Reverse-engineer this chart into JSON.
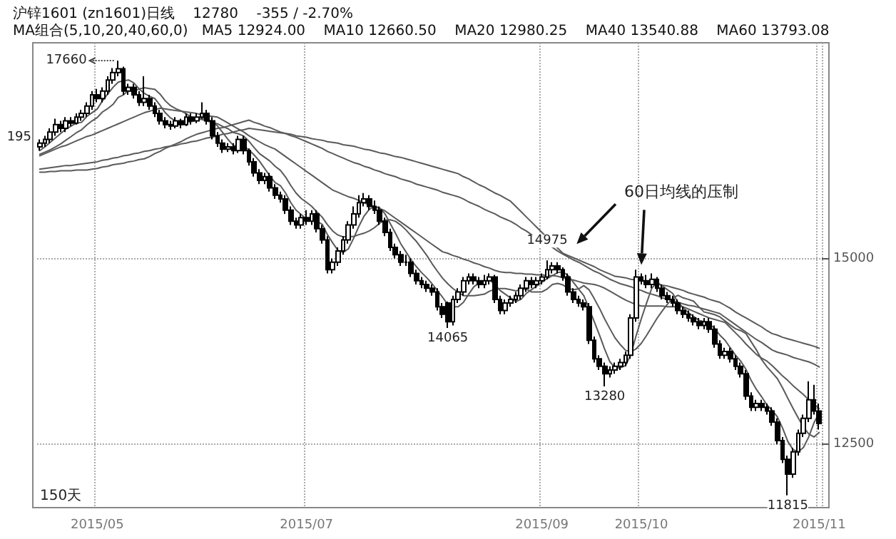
{
  "chart_data": {
    "type": "candlestick",
    "title": "沪锌1601 (zn1601)日线    12780    -355 / -2.70%",
    "subtitle": "MA组合(5,10,20,40,60,0)   MA5 12924.00    MA10 12660.50    MA20 12980.25    MA40 13540.88    MA60 13793.08",
    "categories": [
      null,
      null,
      null,
      null,
      null,
      null,
      null,
      null,
      null,
      null,
      null,
      "2015/05",
      null,
      null,
      null,
      null,
      null,
      null,
      null,
      null,
      null,
      null,
      null,
      null,
      null,
      null,
      null,
      null,
      null,
      null,
      null,
      null,
      null,
      null,
      null,
      null,
      null,
      null,
      null,
      null,
      null,
      null,
      null,
      null,
      null,
      null,
      null,
      null,
      null,
      null,
      null,
      "2015/07",
      null,
      null,
      null,
      null,
      null,
      null,
      null,
      null,
      null,
      null,
      null,
      null,
      null,
      null,
      null,
      null,
      null,
      null,
      null,
      null,
      null,
      null,
      null,
      null,
      null,
      null,
      null,
      null,
      null,
      null,
      null,
      null,
      null,
      null,
      null,
      null,
      null,
      null,
      null,
      null,
      null,
      null,
      null,
      null,
      "2015/09",
      null,
      null,
      null,
      null,
      null,
      null,
      null,
      null,
      null,
      null,
      null,
      null,
      null,
      null,
      null,
      null,
      null,
      null,
      "2015/10",
      null,
      null,
      null,
      null,
      null,
      null,
      null,
      null,
      null,
      null,
      null,
      null,
      null,
      null,
      null,
      null,
      null,
      null,
      null,
      null,
      null,
      null,
      null,
      null,
      null,
      null,
      null,
      null,
      null,
      null,
      null,
      null,
      null,
      "2015/11"
    ],
    "ohlc": [
      [
        16500,
        16600,
        16450,
        16550
      ],
      [
        16550,
        16650,
        16500,
        16600
      ],
      [
        16600,
        16750,
        16550,
        16700
      ],
      [
        16700,
        16880,
        16650,
        16800
      ],
      [
        16800,
        16850,
        16700,
        16750
      ],
      [
        16750,
        16900,
        16700,
        16850
      ],
      [
        16850,
        16900,
        16780,
        16820
      ],
      [
        16820,
        16950,
        16800,
        16900
      ],
      [
        16900,
        17000,
        16850,
        16950
      ],
      [
        16950,
        17100,
        16900,
        17050
      ],
      [
        17050,
        17250,
        17000,
        17200
      ],
      [
        17200,
        17280,
        17100,
        17150
      ],
      [
        17150,
        17300,
        17100,
        17250
      ],
      [
        17250,
        17450,
        17200,
        17400
      ],
      [
        17400,
        17560,
        17350,
        17500
      ],
      [
        17500,
        17660,
        17450,
        17550
      ],
      [
        17550,
        17580,
        17200,
        17250
      ],
      [
        17250,
        17350,
        17200,
        17300
      ],
      [
        17300,
        17350,
        17150,
        17200
      ],
      [
        17200,
        17250,
        17050,
        17100
      ],
      [
        17100,
        17450,
        17050,
        17150
      ],
      [
        17150,
        17200,
        17000,
        17050
      ],
      [
        17050,
        17100,
        16900,
        16950
      ],
      [
        16950,
        17000,
        16800,
        16850
      ],
      [
        16850,
        16900,
        16750,
        16800
      ],
      [
        16800,
        16850,
        16730,
        16780
      ],
      [
        16780,
        16900,
        16750,
        16850
      ],
      [
        16850,
        16880,
        16750,
        16800
      ],
      [
        16800,
        16950,
        16780,
        16900
      ],
      [
        16900,
        16950,
        16800,
        16850
      ],
      [
        16850,
        16950,
        16820,
        16900
      ],
      [
        16900,
        17100,
        16880,
        16950
      ],
      [
        16950,
        17000,
        16800,
        16850
      ],
      [
        16850,
        16900,
        16600,
        16650
      ],
      [
        16650,
        16700,
        16500,
        16550
      ],
      [
        16550,
        16600,
        16420,
        16470
      ],
      [
        16470,
        16550,
        16430,
        16500
      ],
      [
        16500,
        16550,
        16400,
        16450
      ],
      [
        16450,
        16650,
        16420,
        16600
      ],
      [
        16600,
        16650,
        16400,
        16450
      ],
      [
        16450,
        16480,
        16250,
        16300
      ],
      [
        16300,
        16350,
        16100,
        16150
      ],
      [
        16150,
        16200,
        16000,
        16050
      ],
      [
        16050,
        16150,
        16000,
        16100
      ],
      [
        16100,
        16150,
        15900,
        15950
      ],
      [
        15950,
        16000,
        15800,
        15850
      ],
      [
        15850,
        15900,
        15750,
        15800
      ],
      [
        15800,
        15850,
        15600,
        15650
      ],
      [
        15650,
        15700,
        15450,
        15500
      ],
      [
        15500,
        15550,
        15400,
        15450
      ],
      [
        15450,
        15600,
        15400,
        15550
      ],
      [
        15550,
        15650,
        15450,
        15500
      ],
      [
        15500,
        15650,
        15450,
        15600
      ],
      [
        15600,
        15650,
        15350,
        15400
      ],
      [
        15400,
        15450,
        15200,
        15250
      ],
      [
        15250,
        15300,
        14800,
        14850
      ],
      [
        14850,
        15000,
        14800,
        14950
      ],
      [
        14950,
        15150,
        14900,
        15100
      ],
      [
        15100,
        15300,
        15050,
        15250
      ],
      [
        15250,
        15500,
        15200,
        15450
      ],
      [
        15450,
        15700,
        15400,
        15600
      ],
      [
        15600,
        15850,
        15550,
        15750
      ],
      [
        15750,
        15880,
        15700,
        15800
      ],
      [
        15800,
        15850,
        15650,
        15700
      ],
      [
        15700,
        15780,
        15600,
        15650
      ],
      [
        15650,
        15700,
        15450,
        15500
      ],
      [
        15500,
        15550,
        15300,
        15350
      ],
      [
        15350,
        15400,
        15100,
        15150
      ],
      [
        15150,
        15200,
        15000,
        15050
      ],
      [
        15050,
        15100,
        14900,
        14950
      ],
      [
        14950,
        15050,
        14900,
        14950
      ],
      [
        14950,
        15000,
        14750,
        14800
      ],
      [
        14800,
        14850,
        14650,
        14700
      ],
      [
        14700,
        14750,
        14600,
        14650
      ],
      [
        14650,
        14700,
        14550,
        14600
      ],
      [
        14600,
        14650,
        14500,
        14550
      ],
      [
        14550,
        14600,
        14300,
        14350
      ],
      [
        14350,
        14400,
        14200,
        14250
      ],
      [
        14400,
        14420,
        14065,
        14150
      ],
      [
        14150,
        14500,
        14100,
        14450
      ],
      [
        14450,
        14600,
        14400,
        14550
      ],
      [
        14550,
        14750,
        14500,
        14700
      ],
      [
        14700,
        14800,
        14650,
        14750
      ],
      [
        14750,
        14800,
        14650,
        14700
      ],
      [
        14700,
        14750,
        14600,
        14650
      ],
      [
        14650,
        14780,
        14600,
        14700
      ],
      [
        14700,
        14800,
        14650,
        14750
      ],
      [
        14750,
        14780,
        14400,
        14450
      ],
      [
        14450,
        14500,
        14250,
        14300
      ],
      [
        14300,
        14450,
        14250,
        14400
      ],
      [
        14400,
        14500,
        14350,
        14450
      ],
      [
        14450,
        14550,
        14400,
        14500
      ],
      [
        14500,
        14650,
        14450,
        14600
      ],
      [
        14600,
        14750,
        14550,
        14700
      ],
      [
        14700,
        14750,
        14600,
        14650
      ],
      [
        14650,
        14750,
        14600,
        14700
      ],
      [
        14700,
        14800,
        14650,
        14750
      ],
      [
        14750,
        14975,
        14720,
        14850
      ],
      [
        14850,
        14950,
        14800,
        14900
      ],
      [
        14900,
        14950,
        14800,
        14850
      ],
      [
        14850,
        14880,
        14700,
        14750
      ],
      [
        14750,
        14800,
        14500,
        14550
      ],
      [
        14550,
        14600,
        14400,
        14450
      ],
      [
        14450,
        14500,
        14350,
        14400
      ],
      [
        14400,
        14450,
        14300,
        14350
      ],
      [
        14350,
        14400,
        13850,
        13900
      ],
      [
        13900,
        13950,
        13600,
        13650
      ],
      [
        13650,
        13700,
        13500,
        13550
      ],
      [
        13550,
        13600,
        13280,
        13450
      ],
      [
        13450,
        13550,
        13400,
        13500
      ],
      [
        13500,
        13600,
        13450,
        13550
      ],
      [
        13550,
        13650,
        13500,
        13600
      ],
      [
        13600,
        13750,
        13550,
        13700
      ],
      [
        13700,
        14250,
        13650,
        14200
      ],
      [
        14200,
        14850,
        14150,
        14750
      ],
      [
        14750,
        14800,
        14650,
        14700
      ],
      [
        14700,
        14780,
        14600,
        14650
      ],
      [
        14650,
        14800,
        14600,
        14720
      ],
      [
        14720,
        14750,
        14550,
        14600
      ],
      [
        14600,
        14650,
        14450,
        14500
      ],
      [
        14500,
        14550,
        14400,
        14450
      ],
      [
        14450,
        14500,
        14350,
        14400
      ],
      [
        14400,
        14450,
        14250,
        14300
      ],
      [
        14300,
        14350,
        14200,
        14250
      ],
      [
        14250,
        14300,
        14150,
        14200
      ],
      [
        14200,
        14250,
        14100,
        14150
      ],
      [
        14150,
        14200,
        14050,
        14100
      ],
      [
        14100,
        14200,
        14050,
        14150
      ],
      [
        14150,
        14200,
        14000,
        14050
      ],
      [
        14050,
        14100,
        13800,
        13850
      ],
      [
        13850,
        13900,
        13650,
        13700
      ],
      [
        13700,
        13800,
        13650,
        13750
      ],
      [
        13750,
        13800,
        13600,
        13650
      ],
      [
        13650,
        13700,
        13500,
        13550
      ],
      [
        13550,
        13600,
        13400,
        13450
      ],
      [
        13450,
        13500,
        13100,
        13150
      ],
      [
        13150,
        13200,
        12950,
        13000
      ],
      [
        13000,
        13100,
        12950,
        13050
      ],
      [
        13050,
        13100,
        12950,
        13000
      ],
      [
        13000,
        13050,
        12900,
        12950
      ],
      [
        12950,
        13000,
        12750,
        12800
      ],
      [
        12800,
        12850,
        12500,
        12550
      ],
      [
        12550,
        12600,
        12250,
        12300
      ],
      [
        12300,
        12350,
        11815,
        12100
      ],
      [
        12100,
        12450,
        12050,
        12400
      ],
      [
        12400,
        12700,
        12350,
        12650
      ],
      [
        12650,
        12900,
        12600,
        12850
      ],
      [
        12850,
        13350,
        12800,
        13100
      ],
      [
        13100,
        13300,
        12900,
        12950
      ],
      [
        12950,
        13050,
        12700,
        12780
      ]
    ],
    "series": [
      {
        "type": "line",
        "color": "#5a5a5a",
        "values": [
          16450,
          16500,
          16560,
          16620,
          16680,
          16740,
          16780,
          16820,
          16830,
          16910,
          16960,
          17010,
          17120,
          17210,
          17300,
          17370,
          17390,
          17400,
          17360,
          17280,
          17220,
          17180,
          17150,
          17060,
          16960,
          16890,
          16850,
          16820,
          16830,
          16840,
          16860,
          16890,
          16870,
          16840,
          16780,
          16690,
          16600,
          16520,
          16510,
          16510,
          16460,
          16390,
          16310,
          16210,
          16110,
          16020,
          15980,
          15880,
          15750,
          15650,
          15590,
          15530,
          15520,
          15500,
          15460,
          15320,
          15210,
          15110,
          15080,
          15130,
          15270,
          15430,
          15570,
          15660,
          15700,
          15680,
          15600,
          15470,
          15340,
          15200,
          15090,
          14980,
          14890,
          14810,
          14740,
          14660,
          14570,
          14480,
          14380,
          14350,
          14350,
          14410,
          14520,
          14620,
          14670,
          14690,
          14710,
          14650,
          14570,
          14520,
          14470,
          14420,
          14450,
          14530,
          14580,
          14630,
          14680,
          14730,
          14770,
          14810,
          14820,
          14770,
          14680,
          14590,
          14500,
          14330,
          14150,
          13970,
          13780,
          13610,
          13530,
          13530,
          13560,
          13710,
          13960,
          14190,
          14400,
          14600,
          14680,
          14630,
          14580,
          14530,
          14410,
          14340,
          14270,
          14220,
          14170,
          14150,
          14120,
          14060,
          13970,
          13900,
          13800,
          13700,
          13620,
          13510,
          13360,
          13240,
          13140,
          13030,
          12960,
          12870,
          12720,
          12540,
          12430,
          12400,
          12460,
          12600,
          12790,
          12924
        ]
      },
      {
        "type": "line",
        "color": "#5a5a5a",
        "values": [
          16400,
          16430,
          16460,
          16500,
          16540,
          16590,
          16640,
          16690,
          16730,
          16795,
          16850,
          16895,
          16970,
          17015,
          17070,
          17165,
          17200,
          17260,
          17245,
          17280,
          17295,
          17285,
          17275,
          17210,
          17120,
          17055,
          17015,
          16985,
          16945,
          16900,
          16875,
          16870,
          16845,
          16830,
          16810,
          16775,
          16745,
          16695,
          16675,
          16645,
          16575,
          16490,
          16410,
          16360,
          16310,
          16240,
          16185,
          16095,
          15980,
          15880,
          15805,
          15755,
          15700,
          15625,
          15555,
          15455,
          15370,
          15315,
          15290,
          15295,
          15295,
          15320,
          15340,
          15370,
          15415,
          15475,
          15515,
          15520,
          15500,
          15450,
          15385,
          15305,
          15230,
          15135,
          15040,
          14930,
          14830,
          14735,
          14660,
          14595,
          14545,
          14500,
          14500,
          14500,
          14510,
          14520,
          14560,
          14585,
          14595,
          14595,
          14580,
          14565,
          14580,
          14590,
          14550,
          14550,
          14550,
          14590,
          14650,
          14665,
          14645,
          14600,
          14580,
          14590,
          14635,
          14580,
          14460,
          14330,
          14185,
          14055,
          13930,
          13840,
          13765,
          13745,
          13785,
          13860,
          13965,
          14080,
          14195,
          14295,
          14385,
          14465,
          14505,
          14470,
          14450,
          14425,
          14350,
          14280,
          14265,
          14245,
          14215,
          14160,
          14105,
          14055,
          14030,
          13990,
          13880,
          13770,
          13640,
          13545,
          13465,
          13385,
          13260,
          13120,
          12985,
          12855,
          12730,
          12640,
          12600,
          12660.5
        ]
      },
      {
        "type": "line",
        "color": "#5a5a5a",
        "values": [
          16380,
          16410,
          16440,
          16470,
          16500,
          16520,
          16550,
          16580,
          16610,
          16640,
          16660,
          16690,
          16720,
          16750,
          16780,
          16810,
          16840,
          16870,
          16900,
          16930,
          16960,
          16980,
          17000,
          17020,
          17010,
          17000,
          16990,
          16980,
          16970,
          16960,
          16950,
          16930,
          16920,
          16910,
          16900,
          16860,
          16820,
          16780,
          16740,
          16700,
          16650,
          16610,
          16570,
          16530,
          16500,
          16470,
          16420,
          16370,
          16320,
          16270,
          16220,
          16170,
          16120,
          16070,
          16020,
          15970,
          15920,
          15890,
          15860,
          15830,
          15810,
          15780,
          15750,
          15720,
          15700,
          15670,
          15640,
          15590,
          15540,
          15490,
          15440,
          15390,
          15340,
          15290,
          15240,
          15190,
          15140,
          15090,
          15070,
          15040,
          15020,
          14990,
          14970,
          14940,
          14920,
          14890,
          14870,
          14840,
          14820,
          14810,
          14810,
          14800,
          14800,
          14790,
          14790,
          14780,
          14780,
          14770,
          14770,
          14760,
          14740,
          14720,
          14710,
          14690,
          14670,
          14660,
          14650,
          14630,
          14600,
          14560,
          14520,
          14480,
          14440,
          14410,
          14380,
          14360,
          14360,
          14360,
          14360,
          14360,
          14350,
          14350,
          14350,
          14350,
          14320,
          14290,
          14260,
          14230,
          14200,
          14180,
          14160,
          14140,
          14070,
          14000,
          13930,
          13850,
          13780,
          13710,
          13660,
          13620,
          13560,
          13490,
          13420,
          13360,
          13290,
          13230,
          13170,
          13100,
          13040,
          12980.25
        ]
      },
      {
        "type": "line",
        "color": "#5a5a5a",
        "values": [
          16160,
          16160,
          16170,
          16170,
          16180,
          16180,
          16180,
          16190,
          16190,
          16190,
          16200,
          16210,
          16230,
          16240,
          16260,
          16270,
          16280,
          16300,
          16310,
          16330,
          16340,
          16370,
          16410,
          16440,
          16480,
          16510,
          16540,
          16570,
          16610,
          16640,
          16670,
          16690,
          16710,
          16730,
          16750,
          16760,
          16780,
          16800,
          16820,
          16840,
          16860,
          16830,
          16810,
          16780,
          16760,
          16730,
          16700,
          16680,
          16650,
          16630,
          16600,
          16570,
          16540,
          16510,
          16480,
          16440,
          16410,
          16380,
          16350,
          16320,
          16290,
          16270,
          16240,
          16220,
          16190,
          16170,
          16140,
          16120,
          16100,
          16070,
          16050,
          16030,
          16000,
          15980,
          15960,
          15940,
          15920,
          15890,
          15870,
          15850,
          15830,
          15800,
          15760,
          15730,
          15700,
          15660,
          15630,
          15600,
          15560,
          15530,
          15500,
          15460,
          15410,
          15370,
          15320,
          15280,
          15230,
          15190,
          15150,
          15100,
          15060,
          15020,
          14980,
          14950,
          14910,
          14870,
          14830,
          14800,
          14760,
          14720,
          14690,
          14660,
          14640,
          14620,
          14590,
          14570,
          14540,
          14520,
          14500,
          14470,
          14450,
          14430,
          14410,
          14390,
          14370,
          14360,
          14340,
          14320,
          14300,
          14280,
          14260,
          14210,
          14160,
          14110,
          14060,
          14010,
          13960,
          13910,
          13870,
          13820,
          13770,
          13740,
          13720,
          13700,
          13670,
          13650,
          13630,
          13610,
          13580,
          13540.88
        ]
      },
      {
        "type": "line",
        "color": "#5a5a5a",
        "values": [
          16200,
          16210,
          16220,
          16230,
          16240,
          16250,
          16250,
          16260,
          16270,
          16280,
          16290,
          16300,
          16320,
          16330,
          16350,
          16360,
          16380,
          16390,
          16410,
          16420,
          16440,
          16450,
          16470,
          16480,
          16500,
          16510,
          16520,
          16540,
          16550,
          16570,
          16580,
          16600,
          16620,
          16630,
          16650,
          16670,
          16680,
          16700,
          16720,
          16730,
          16750,
          16740,
          16730,
          16720,
          16710,
          16700,
          16690,
          16680,
          16670,
          16650,
          16640,
          16630,
          16610,
          16600,
          16590,
          16570,
          16560,
          16550,
          16530,
          16520,
          16510,
          16490,
          16470,
          16460,
          16440,
          16420,
          16410,
          16390,
          16370,
          16360,
          16340,
          16320,
          16300,
          16280,
          16260,
          16240,
          16220,
          16200,
          16180,
          16160,
          16140,
          16100,
          16070,
          16030,
          15990,
          15960,
          15920,
          15880,
          15850,
          15810,
          15770,
          15700,
          15630,
          15560,
          15490,
          15420,
          15350,
          15280,
          15210,
          15140,
          15070,
          15040,
          15010,
          14980,
          14950,
          14920,
          14890,
          14850,
          14820,
          14790,
          14760,
          14750,
          14740,
          14720,
          14710,
          14700,
          14680,
          14670,
          14660,
          14640,
          14630,
          14610,
          14590,
          14570,
          14540,
          14520,
          14500,
          14480,
          14450,
          14430,
          14410,
          14370,
          14330,
          14280,
          14240,
          14200,
          14160,
          14120,
          14080,
          14030,
          13990,
          13970,
          13940,
          13920,
          13900,
          13880,
          13860,
          13840,
          13820,
          13793.08
        ]
      }
    ],
    "ylim": [
      11650,
      17900
    ],
    "yticks": [
      12500,
      15000
    ],
    "grid": true,
    "annotations": [
      {
        "text": "17660",
        "y": 17660
      },
      {
        "text": "14065",
        "y": 14065
      },
      {
        "text": "14975",
        "y": 14975
      },
      {
        "text": "13280",
        "y": 13280
      },
      {
        "text": "11815",
        "y": 11815
      },
      "60日均线的压制",
      "195",
      "150天"
    ]
  }
}
